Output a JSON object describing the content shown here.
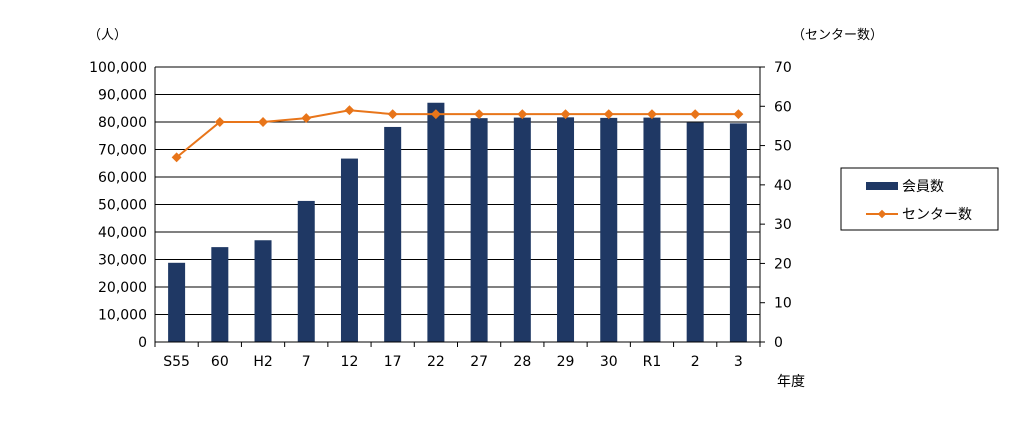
{
  "chart_data": {
    "type": "bar",
    "categories": [
      "S55",
      "60",
      "H2",
      "7",
      "12",
      "17",
      "22",
      "27",
      "28",
      "29",
      "30",
      "R1",
      "2",
      "3"
    ],
    "series": [
      {
        "name": "会員数",
        "type": "bar",
        "axis": "left",
        "color": "#1f3864",
        "values": [
          28800,
          34500,
          37000,
          51300,
          66700,
          78200,
          87000,
          81400,
          81600,
          81700,
          81500,
          81600,
          79800,
          79500
        ]
      },
      {
        "name": "センター数",
        "type": "line",
        "axis": "right",
        "color": "#e8751a",
        "values": [
          47,
          56,
          56,
          57,
          59,
          58,
          58,
          58,
          58,
          58,
          58,
          58,
          58,
          58
        ]
      }
    ],
    "y_left": {
      "unit_label": "（人）",
      "ylim": [
        0,
        100000
      ],
      "ticks": [
        "0",
        "10,000",
        "20,000",
        "30,000",
        "40,000",
        "50,000",
        "60,000",
        "70,000",
        "80,000",
        "90,000",
        "100,000"
      ]
    },
    "y_right": {
      "unit_label": "（センター数）",
      "ylim": [
        0,
        70
      ],
      "ticks": [
        "0",
        "10",
        "20",
        "30",
        "40",
        "50",
        "60",
        "70"
      ]
    },
    "xlabel": "年度",
    "grid": true,
    "legend": {
      "placement": "right",
      "items": [
        "会員数",
        "センター数"
      ]
    }
  }
}
